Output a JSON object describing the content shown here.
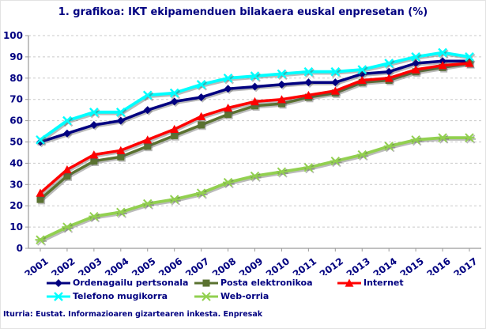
{
  "page": {
    "title": "1. grafikoa: IKT ekipamenduen bilakaera euskal enpresetan (%)",
    "source": "Iturria: Eustat. Informazioaren gizartearen inkesta. Enpresak"
  },
  "colors": {
    "text": "#000080",
    "axis": "#9a9a9a",
    "grid": "#c9c9c9",
    "shadow": "rgba(85,85,85,0.40)",
    "background": "#ffffff"
  },
  "chart_data": {
    "type": "line",
    "title": "1. grafikoa: IKT ekipamenduen bilakaera euskal enpresetan (%)",
    "xlabel": "",
    "ylabel": "",
    "ylim": [
      0,
      100
    ],
    "ytick_step": 10,
    "grid": "horizontal-dashed",
    "legend_position": "bottom",
    "categories": [
      "2001",
      "2002",
      "2003",
      "2004",
      "2005",
      "2006",
      "2007",
      "2008",
      "2009",
      "2010",
      "2011",
      "2012",
      "2013",
      "2014",
      "2015",
      "2016",
      "2017"
    ],
    "series": [
      {
        "name": "Ordenagailu pertsonala",
        "color": "#000080",
        "marker": "diamond",
        "values": [
          50,
          54,
          58,
          60,
          65,
          69,
          71,
          75,
          76,
          77,
          78,
          78,
          82,
          83,
          87,
          88,
          88
        ]
      },
      {
        "name": "Posta elektronikoa",
        "color": "#5a7230",
        "marker": "square",
        "values": [
          23,
          34,
          41,
          43,
          48,
          53,
          58,
          63,
          67,
          68,
          71,
          73,
          78,
          79,
          83,
          85,
          87
        ]
      },
      {
        "name": "Internet",
        "color": "#ff0000",
        "marker": "triangle",
        "values": [
          26,
          37,
          44,
          46,
          51,
          56,
          62,
          66,
          69,
          70,
          72,
          74,
          79,
          80,
          84,
          86,
          87
        ]
      },
      {
        "name": "Telefono mugikorra",
        "color": "#00ffff",
        "marker": "x",
        "values": [
          51,
          60,
          64,
          64,
          72,
          73,
          77,
          80,
          81,
          82,
          83,
          83,
          84,
          87,
          90,
          92,
          90
        ]
      },
      {
        "name": "Web-orria",
        "color": "#92d050",
        "marker": "asterisk",
        "values": [
          4,
          10,
          15,
          17,
          21,
          23,
          26,
          31,
          34,
          36,
          38,
          41,
          44,
          48,
          51,
          52,
          52
        ]
      }
    ]
  }
}
